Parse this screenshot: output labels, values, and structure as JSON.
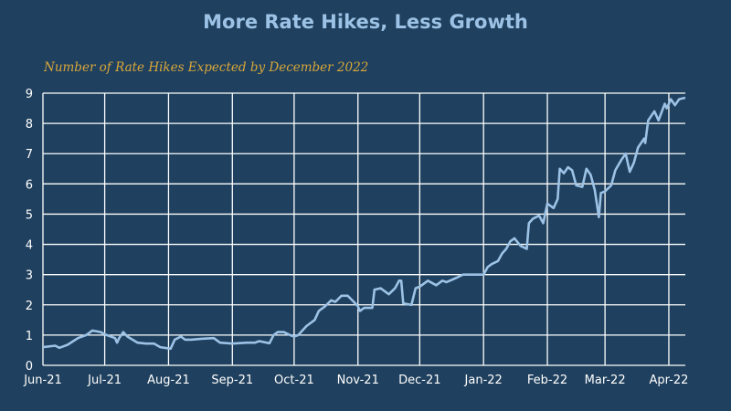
{
  "chart_data": {
    "type": "line",
    "title": "More Rate Hikes, Less Growth",
    "subtitle": "Number of Rate Hikes Expected by December 2022",
    "xlabel": "",
    "ylabel": "",
    "x_units": "days since Jun 1, 2021",
    "xlim": [
      0,
      312
    ],
    "ylim": [
      0,
      9
    ],
    "grid": true,
    "colors": {
      "background": "#1f405e",
      "line": "#9cc2e5",
      "grid": "#ffffff",
      "title": "#9cc2e5",
      "subtitle": "#d9a73a"
    },
    "y_ticks": [
      0,
      1,
      2,
      3,
      4,
      5,
      6,
      7,
      8,
      9
    ],
    "x_ticks": [
      {
        "label": "Jun-21",
        "day": 0
      },
      {
        "label": "Jul-21",
        "day": 30
      },
      {
        "label": "Aug-21",
        "day": 61
      },
      {
        "label": "Sep-21",
        "day": 92
      },
      {
        "label": "Oct-21",
        "day": 122
      },
      {
        "label": "Nov-21",
        "day": 153
      },
      {
        "label": "Dec-21",
        "day": 183
      },
      {
        "label": "Jan-22",
        "day": 214
      },
      {
        "label": "Feb-22",
        "day": 245
      },
      {
        "label": "Mar-22",
        "day": 273
      },
      {
        "label": "Apr-22",
        "day": 304
      }
    ],
    "series": [
      {
        "name": "Number of Rate Hikes Expected by December 2022",
        "points": [
          [
            0,
            0.6
          ],
          [
            6,
            0.65
          ],
          [
            8,
            0.58
          ],
          [
            12,
            0.68
          ],
          [
            17,
            0.9
          ],
          [
            21,
            1.0
          ],
          [
            24,
            1.15
          ],
          [
            28,
            1.1
          ],
          [
            31,
            1.0
          ],
          [
            35,
            0.9
          ],
          [
            36,
            0.75
          ],
          [
            37,
            0.9
          ],
          [
            39,
            1.1
          ],
          [
            41,
            0.95
          ],
          [
            46,
            0.75
          ],
          [
            50,
            0.72
          ],
          [
            54,
            0.72
          ],
          [
            57,
            0.6
          ],
          [
            62,
            0.55
          ],
          [
            64,
            0.85
          ],
          [
            67,
            0.95
          ],
          [
            69,
            0.85
          ],
          [
            72,
            0.85
          ],
          [
            77,
            0.88
          ],
          [
            83,
            0.9
          ],
          [
            86,
            0.75
          ],
          [
            92,
            0.72
          ],
          [
            99,
            0.75
          ],
          [
            103,
            0.75
          ],
          [
            105,
            0.8
          ],
          [
            110,
            0.73
          ],
          [
            112,
            1.0
          ],
          [
            114,
            1.1
          ],
          [
            117,
            1.1
          ],
          [
            120,
            1.0
          ],
          [
            122,
            0.95
          ],
          [
            124,
            1.0
          ],
          [
            128,
            1.3
          ],
          [
            132,
            1.5
          ],
          [
            134,
            1.8
          ],
          [
            137,
            1.95
          ],
          [
            140,
            2.15
          ],
          [
            142,
            2.1
          ],
          [
            145,
            2.3
          ],
          [
            148,
            2.3
          ],
          [
            151,
            2.1
          ],
          [
            153,
            1.95
          ],
          [
            154,
            1.8
          ],
          [
            156,
            1.9
          ],
          [
            160,
            1.9
          ],
          [
            161,
            2.5
          ],
          [
            164,
            2.55
          ],
          [
            168,
            2.35
          ],
          [
            171,
            2.55
          ],
          [
            173,
            2.8
          ],
          [
            174,
            2.8
          ],
          [
            175,
            2.05
          ],
          [
            179,
            2.0
          ],
          [
            181,
            2.55
          ],
          [
            183,
            2.6
          ],
          [
            187,
            2.8
          ],
          [
            191,
            2.65
          ],
          [
            194,
            2.8
          ],
          [
            196,
            2.75
          ],
          [
            201,
            2.9
          ],
          [
            204,
            3.0
          ],
          [
            210,
            3.0
          ],
          [
            214,
            3.0
          ],
          [
            216,
            3.25
          ],
          [
            218,
            3.35
          ],
          [
            221,
            3.45
          ],
          [
            223,
            3.7
          ],
          [
            225,
            3.85
          ],
          [
            227,
            4.1
          ],
          [
            229,
            4.2
          ],
          [
            232,
            3.95
          ],
          [
            235,
            3.85
          ],
          [
            236,
            4.7
          ],
          [
            238,
            4.85
          ],
          [
            241,
            4.95
          ],
          [
            243,
            4.7
          ],
          [
            245,
            5.35
          ],
          [
            248,
            5.2
          ],
          [
            250,
            5.5
          ],
          [
            251,
            6.5
          ],
          [
            253,
            6.35
          ],
          [
            255,
            6.55
          ],
          [
            257,
            6.45
          ],
          [
            259,
            5.95
          ],
          [
            262,
            5.9
          ],
          [
            264,
            6.5
          ],
          [
            266,
            6.3
          ],
          [
            268,
            5.8
          ],
          [
            270,
            4.9
          ],
          [
            271,
            5.7
          ],
          [
            273,
            5.75
          ],
          [
            276,
            5.95
          ],
          [
            278,
            6.45
          ],
          [
            281,
            6.8
          ],
          [
            283,
            7.0
          ],
          [
            285,
            6.4
          ],
          [
            287,
            6.7
          ],
          [
            289,
            7.2
          ],
          [
            292,
            7.5
          ],
          [
            292.5,
            7.35
          ],
          [
            294,
            8.1
          ],
          [
            296,
            8.3
          ],
          [
            297,
            8.4
          ],
          [
            299,
            8.1
          ],
          [
            302,
            8.65
          ],
          [
            303,
            8.5
          ],
          [
            305,
            8.8
          ],
          [
            307,
            8.6
          ],
          [
            309,
            8.8
          ],
          [
            312,
            8.85
          ]
        ]
      }
    ]
  }
}
